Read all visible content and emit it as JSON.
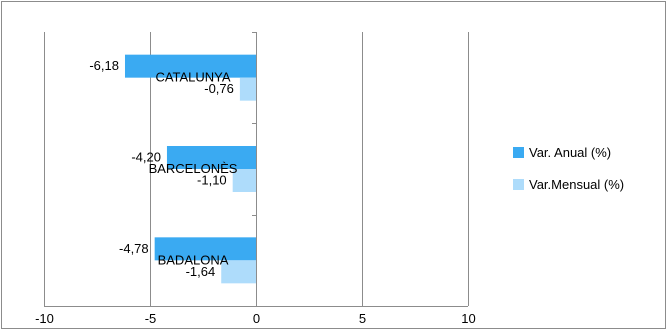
{
  "chart_data": {
    "type": "bar",
    "orientation": "horizontal",
    "categories": [
      "CATALUNYA",
      "BARCELONÈS",
      "BADALONA"
    ],
    "series": [
      {
        "name": "Var. Anual (%)",
        "values": [
          -6.18,
          -4.2,
          -4.78
        ],
        "labels": [
          "-6,18",
          "-4,20",
          "-4,78"
        ],
        "color": "#3aaaf2"
      },
      {
        "name": "Var.Mensual (%)",
        "values": [
          -0.76,
          -1.1,
          -1.64
        ],
        "labels": [
          "-0,76",
          "-1,10",
          "-1,64"
        ],
        "color": "#aedcfb"
      }
    ],
    "xlim": [
      -10,
      10
    ],
    "xticks": [
      -10,
      -5,
      0,
      5,
      10
    ],
    "xtick_labels": [
      "-10",
      "-5",
      "0",
      "5",
      "10"
    ],
    "grid": "vertical",
    "legend": "right",
    "title": "",
    "xlabel": "",
    "ylabel": ""
  }
}
